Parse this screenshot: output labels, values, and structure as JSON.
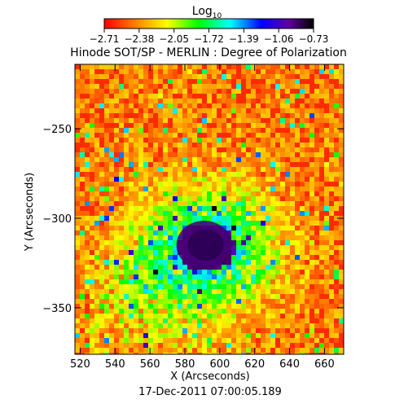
{
  "chart_data": {
    "type": "heatmap",
    "title": "Hinode SOT/SP - MERLIN : Degree of Polarization",
    "xlabel": "X (Arcseconds)",
    "ylabel": "Y (Arcseconds)",
    "footer": "17-Dec-2011 07:00:05.189",
    "xlim": [
      517,
      671
    ],
    "ylim": [
      -376,
      -214
    ],
    "x_ticks": [
      520,
      540,
      560,
      580,
      600,
      620,
      640,
      660
    ],
    "y_ticks": [
      -250,
      -300,
      -350
    ],
    "colorbar": {
      "label_base": "Log",
      "label_sub": "10",
      "range": [
        -2.71,
        -0.73
      ],
      "ticks": [
        "-2.71",
        "-2.38",
        "-2.05",
        "-1.72",
        "-1.39",
        "-1.06",
        "-0.73"
      ],
      "colormap": [
        "#ff0000",
        "#ff8000",
        "#ffff00",
        "#00ff00",
        "#00ffff",
        "#0000ff",
        "#6000a0",
        "#000000"
      ]
    },
    "features": {
      "background_level": -2.6,
      "sunspot": {
        "center": [
          591,
          -315
        ],
        "radius_arcsec": 10,
        "level": -0.9
      }
    }
  }
}
